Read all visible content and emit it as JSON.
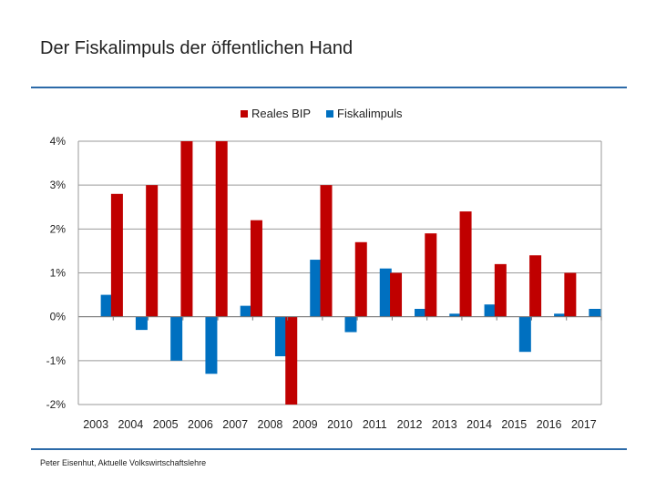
{
  "header": {
    "title": "Der Fiskalimpuls der öffentlichen Hand"
  },
  "footer": {
    "credit": "Peter Eisenhut, Aktuelle Volkswirtschaftslehre"
  },
  "chart_data": {
    "type": "bar",
    "title": "",
    "xlabel": "",
    "ylabel": "",
    "ylim": [
      -2,
      4
    ],
    "yticks": [
      4,
      3,
      2,
      1,
      0,
      -1,
      -2
    ],
    "ytick_labels": [
      "4%",
      "3%",
      "2%",
      "1%",
      "0%",
      "-1%",
      "-2%"
    ],
    "grid": true,
    "legend_position": "top-center",
    "categories": [
      "2003",
      "2004",
      "2005",
      "2006",
      "2007",
      "2008",
      "2009",
      "2010",
      "2011",
      "2012",
      "2013",
      "2014",
      "2015",
      "2016",
      "2017"
    ],
    "series": [
      {
        "name": "Reales BIP",
        "color": "#c00000",
        "values": [
          0.0,
          2.8,
          3.0,
          4.0,
          4.0,
          2.2,
          -2.0,
          3.0,
          1.7,
          1.0,
          1.9,
          2.4,
          1.2,
          1.4,
          1.0
        ]
      },
      {
        "name": "Fiskalimpuls",
        "color": "#0070c0",
        "values": [
          0.5,
          -0.3,
          -1.0,
          -1.3,
          0.25,
          -0.9,
          1.3,
          -0.35,
          1.1,
          0.18,
          0.07,
          0.28,
          -0.8,
          0.07,
          0.18
        ]
      }
    ]
  }
}
